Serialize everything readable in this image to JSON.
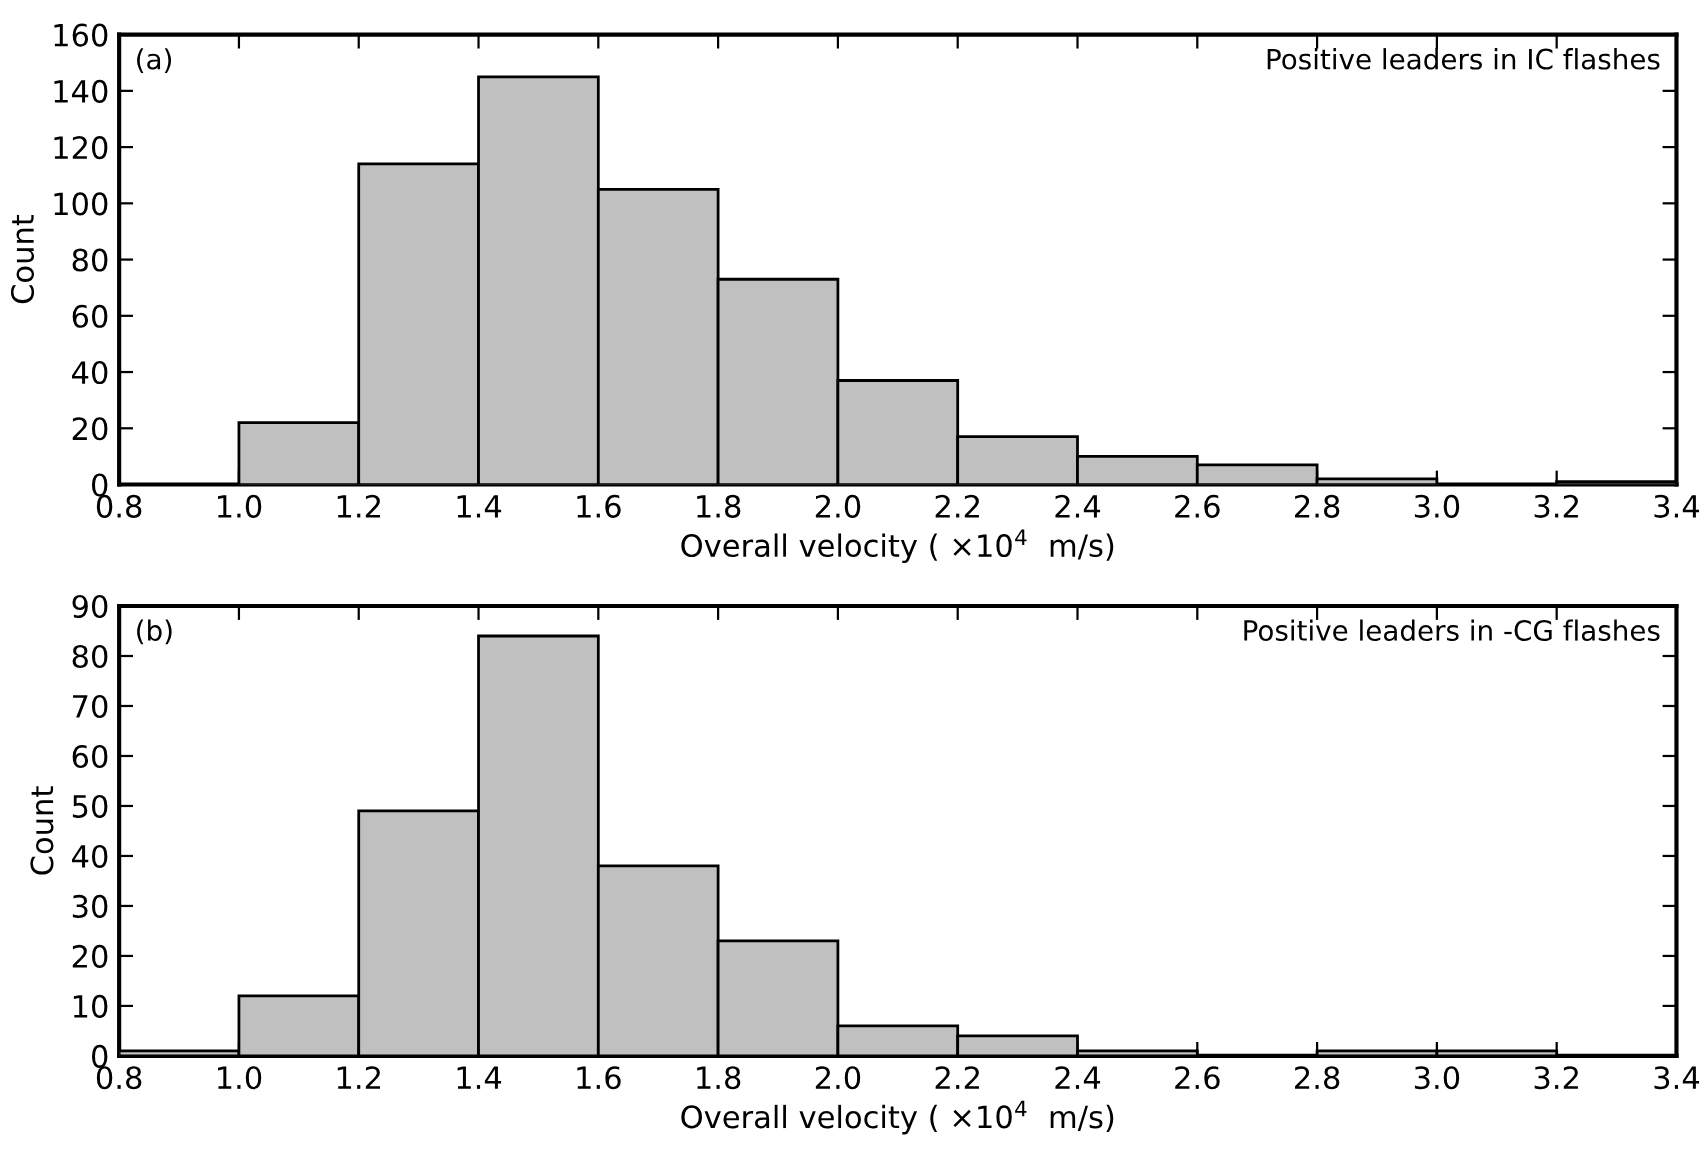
{
  "chart_data": [
    {
      "type": "histogram",
      "bins": [
        1.0,
        1.2,
        1.4,
        1.6,
        1.8,
        2.0,
        2.2,
        2.4,
        2.6,
        2.8,
        3.0,
        3.2,
        3.4
      ],
      "values": [
        22,
        114,
        145,
        105,
        73,
        37,
        17,
        10,
        7,
        2,
        0,
        1
      ],
      "color": "#c0c0c0",
      "xlabel": "Overall velocity ( ×10$^{4}$  m/s)",
      "ylabel": "Count",
      "annotations": [
        "(a)",
        "Positive leaders in IC flashes"
      ],
      "xlim": [
        0.8,
        3.4
      ],
      "ylim": [
        0,
        160
      ],
      "xticks": [
        {
          "value": 0.8,
          "label": "0.8"
        },
        {
          "value": 1.0,
          "label": "1.0"
        },
        {
          "value": 1.2,
          "label": "1.2"
        },
        {
          "value": 1.4,
          "label": "1.4"
        },
        {
          "value": 1.6,
          "label": "1.6"
        },
        {
          "value": 1.8,
          "label": "1.8"
        },
        {
          "value": 2.0,
          "label": "2.0"
        },
        {
          "value": 2.2,
          "label": "2.2"
        },
        {
          "value": 2.4,
          "label": "2.4"
        },
        {
          "value": 2.6,
          "label": "2.6"
        },
        {
          "value": 2.8,
          "label": "2.8"
        },
        {
          "value": 3.0,
          "label": "3.0"
        },
        {
          "value": 3.2,
          "label": "3.2"
        },
        {
          "value": 3.4,
          "label": "3.4"
        }
      ],
      "yticks": [
        0,
        20,
        40,
        60,
        80,
        100,
        120,
        140,
        160
      ],
      "grid": false,
      "legend": false
    },
    {
      "type": "histogram",
      "bins": [
        0.8,
        1.0,
        1.2,
        1.4,
        1.6,
        1.8,
        2.0,
        2.2,
        2.4,
        2.6,
        2.8,
        3.0,
        3.2
      ],
      "values": [
        1,
        12,
        49,
        84,
        38,
        23,
        6,
        4,
        1,
        0,
        1,
        1
      ],
      "color": "#c0c0c0",
      "xlabel": "Overall velocity ( ×10$^{4}$  m/s)",
      "ylabel": "Count",
      "annotations": [
        "(b)",
        "Positive leaders in -CG flashes"
      ],
      "xlim": [
        0.8,
        3.4
      ],
      "ylim": [
        0,
        90
      ],
      "xticks": [
        {
          "value": 0.8,
          "label": "0.8"
        },
        {
          "value": 1.0,
          "label": "1.0"
        },
        {
          "value": 1.2,
          "label": "1.2"
        },
        {
          "value": 1.4,
          "label": "1.4"
        },
        {
          "value": 1.6,
          "label": "1.6"
        },
        {
          "value": 1.8,
          "label": "1.8"
        },
        {
          "value": 2.0,
          "label": "2.0"
        },
        {
          "value": 2.2,
          "label": "2.2"
        },
        {
          "value": 2.4,
          "label": "2.4"
        },
        {
          "value": 2.6,
          "label": "2.6"
        },
        {
          "value": 2.8,
          "label": "2.8"
        },
        {
          "value": 3.0,
          "label": "3.0"
        },
        {
          "value": 3.2,
          "label": "3.2"
        },
        {
          "value": 3.4,
          "label": "3.4"
        }
      ],
      "yticks": [
        0,
        10,
        20,
        30,
        40,
        50,
        60,
        70,
        80,
        90
      ],
      "grid": false,
      "legend": false
    }
  ]
}
